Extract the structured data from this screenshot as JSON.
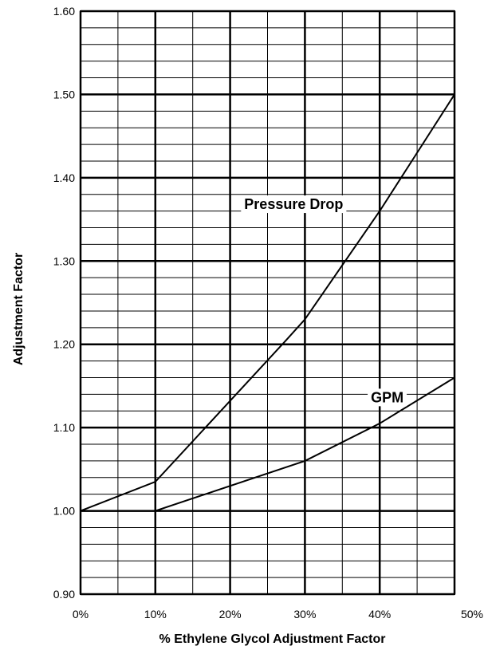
{
  "chart_data": {
    "type": "line",
    "title": "",
    "xlabel": "% Ethylene Glycol Adjustment Factor",
    "ylabel": "Adjustment Factor",
    "xlim": [
      0,
      50
    ],
    "ylim": [
      0.9,
      1.6
    ],
    "grid": true,
    "x_ticks": [
      0,
      10,
      20,
      30,
      40,
      50
    ],
    "x_tick_labels": [
      "0%",
      "10%",
      "20%",
      "30%",
      "40%",
      "50%"
    ],
    "y_ticks": [
      0.9,
      1.0,
      1.1,
      1.2,
      1.3,
      1.4,
      1.5,
      1.6
    ],
    "y_tick_labels": [
      "0.90",
      "1.00",
      "1.10",
      "1.20",
      "1.30",
      "1.40",
      "1.50",
      "1.60"
    ],
    "series": [
      {
        "name": "Pressure Drop",
        "x": [
          0,
          10,
          27.5,
          30,
          40,
          50
        ],
        "y": [
          1.0,
          1.035,
          1.205,
          1.23,
          1.36,
          1.5
        ]
      },
      {
        "name": "GPM",
        "x": [
          0,
          10,
          30,
          40,
          50
        ],
        "y": [
          1.0,
          1.0,
          1.06,
          1.105,
          1.16
        ]
      }
    ],
    "line_color": "#000000",
    "grid_color": "#000000"
  }
}
